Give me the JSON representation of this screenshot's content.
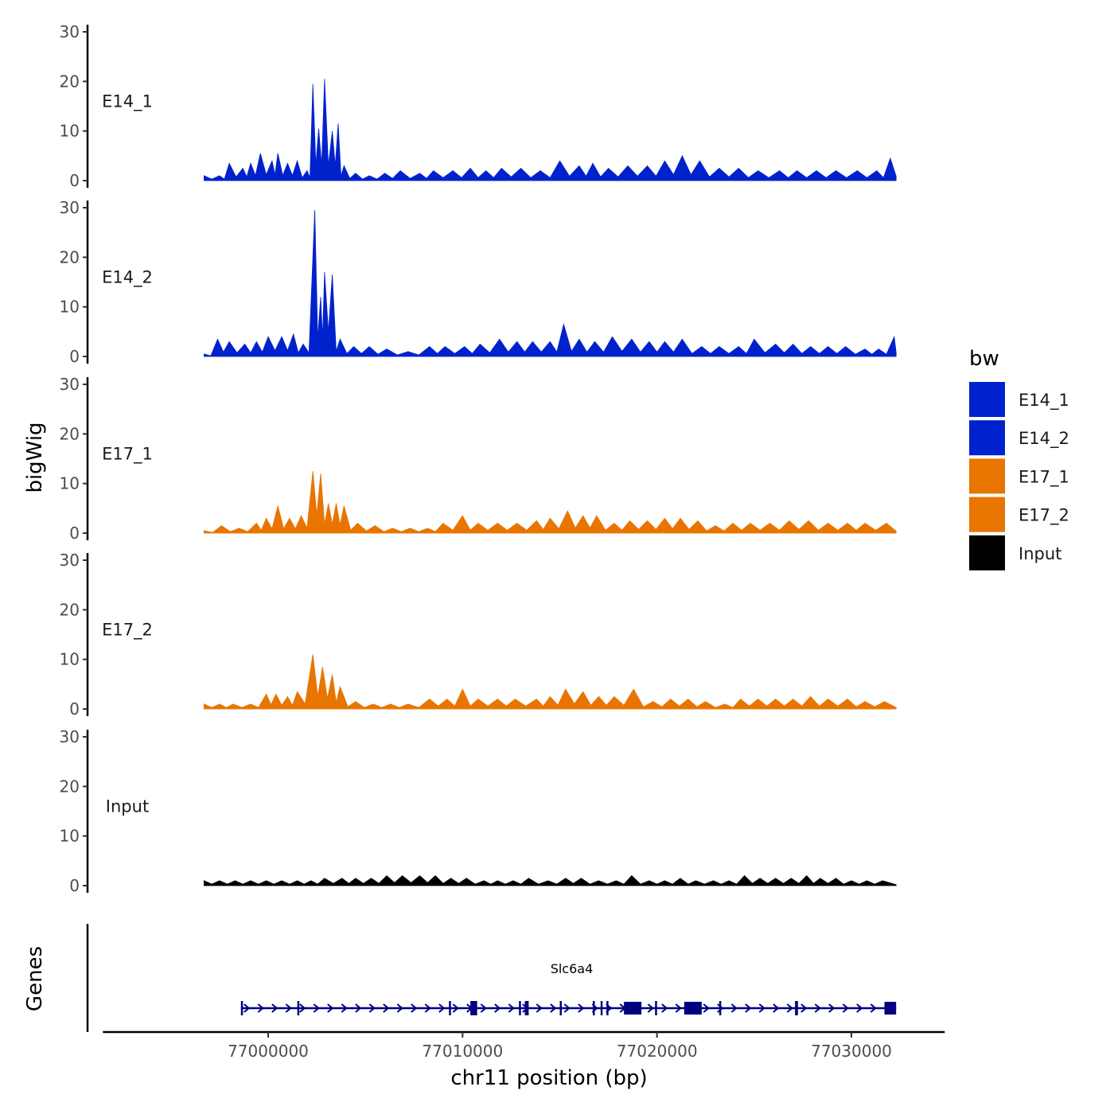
{
  "chart_data": {
    "type": "area",
    "chromosome": "chr11",
    "x_range": [
      76996700,
      77032300
    ],
    "x_axis": {
      "label": "chr11 position (bp)",
      "ticks": [
        77000000,
        77010000,
        77020000,
        77030000
      ],
      "tick_labels": [
        "77000000",
        "77010000",
        "77020000",
        "77030000"
      ],
      "limits": [
        76991500,
        77034800
      ]
    },
    "y_axis": {
      "label": "bigWig",
      "ticks": [
        0,
        10,
        20,
        30
      ],
      "tick_labels": [
        "0",
        "10",
        "20",
        "30"
      ],
      "ylim": [
        0,
        30
      ]
    },
    "genes_axis_label": "Genes",
    "tracks": [
      {
        "name": "E14_1",
        "color": "#0022CC",
        "peaks": [
          [
            76996700,
            1
          ],
          [
            76997500,
            1
          ],
          [
            76998000,
            3.5
          ],
          [
            76998700,
            2.5
          ],
          [
            76999100,
            3.5
          ],
          [
            76999600,
            5.5
          ],
          [
            77000200,
            4
          ],
          [
            77000500,
            5.5
          ],
          [
            77001000,
            3.5
          ],
          [
            77001500,
            4
          ],
          [
            77002000,
            2
          ],
          [
            77002300,
            19.5
          ],
          [
            77002600,
            10.5
          ],
          [
            77002900,
            20.5
          ],
          [
            77003300,
            10
          ],
          [
            77003600,
            11.5
          ],
          [
            77003900,
            3
          ],
          [
            77004500,
            1.5
          ],
          [
            77005200,
            1
          ],
          [
            77006000,
            1.5
          ],
          [
            77006800,
            2
          ],
          [
            77007800,
            1.5
          ],
          [
            77008500,
            2
          ],
          [
            77009500,
            2
          ],
          [
            77010400,
            2.5
          ],
          [
            77011200,
            2
          ],
          [
            77012000,
            2.5
          ],
          [
            77013000,
            2.5
          ],
          [
            77014000,
            2
          ],
          [
            77015000,
            4
          ],
          [
            77016000,
            3
          ],
          [
            77016700,
            3.5
          ],
          [
            77017500,
            2.5
          ],
          [
            77018500,
            3
          ],
          [
            77019500,
            3
          ],
          [
            77020400,
            4
          ],
          [
            77021300,
            5
          ],
          [
            77022200,
            4
          ],
          [
            77023200,
            2.5
          ],
          [
            77024200,
            2.5
          ],
          [
            77025200,
            2
          ],
          [
            77026300,
            2
          ],
          [
            77027200,
            2
          ],
          [
            77028200,
            2
          ],
          [
            77029200,
            2
          ],
          [
            77030300,
            2
          ],
          [
            77031300,
            2
          ],
          [
            77032000,
            4.5
          ]
        ]
      },
      {
        "name": "E14_2",
        "color": "#0022CC",
        "peaks": [
          [
            76996700,
            0.5
          ],
          [
            76997400,
            3.5
          ],
          [
            76998000,
            3
          ],
          [
            76998800,
            2.5
          ],
          [
            76999400,
            3
          ],
          [
            77000000,
            4
          ],
          [
            77000700,
            4
          ],
          [
            77001300,
            4.5
          ],
          [
            77001800,
            2.5
          ],
          [
            77002400,
            29.5
          ],
          [
            77002700,
            12
          ],
          [
            77002900,
            17
          ],
          [
            77003300,
            16.5
          ],
          [
            77003700,
            3.5
          ],
          [
            77004400,
            2
          ],
          [
            77005200,
            2
          ],
          [
            77006100,
            1.5
          ],
          [
            77007200,
            1
          ],
          [
            77008300,
            2
          ],
          [
            77009100,
            2
          ],
          [
            77010100,
            2
          ],
          [
            77010900,
            2.5
          ],
          [
            77011900,
            3.5
          ],
          [
            77012800,
            3
          ],
          [
            77013600,
            3
          ],
          [
            77014500,
            3
          ],
          [
            77015200,
            6.5
          ],
          [
            77016000,
            3.5
          ],
          [
            77016800,
            3
          ],
          [
            77017700,
            4
          ],
          [
            77018700,
            3.5
          ],
          [
            77019600,
            3
          ],
          [
            77020400,
            3
          ],
          [
            77021300,
            3.5
          ],
          [
            77022300,
            2
          ],
          [
            77023200,
            2
          ],
          [
            77024200,
            2
          ],
          [
            77025000,
            3.5
          ],
          [
            77026100,
            2.5
          ],
          [
            77027000,
            2.5
          ],
          [
            77027900,
            2
          ],
          [
            77028800,
            2
          ],
          [
            77029700,
            2
          ],
          [
            77030700,
            1.5
          ],
          [
            77031400,
            1.5
          ],
          [
            77032200,
            4
          ]
        ]
      },
      {
        "name": "E17_1",
        "color": "#E87500",
        "peaks": [
          [
            76996700,
            0.5
          ],
          [
            76997600,
            1.5
          ],
          [
            76998500,
            1
          ],
          [
            76999400,
            2
          ],
          [
            76999900,
            3
          ],
          [
            77000500,
            5.5
          ],
          [
            77001100,
            3
          ],
          [
            77001700,
            3.5
          ],
          [
            77002300,
            12.5
          ],
          [
            77002700,
            12
          ],
          [
            77003100,
            6
          ],
          [
            77003500,
            6
          ],
          [
            77003900,
            5.5
          ],
          [
            77004600,
            2
          ],
          [
            77005500,
            1.5
          ],
          [
            77006400,
            1
          ],
          [
            77007300,
            1
          ],
          [
            77008200,
            1
          ],
          [
            77009000,
            2
          ],
          [
            77010000,
            3.5
          ],
          [
            77010800,
            2
          ],
          [
            77011800,
            2
          ],
          [
            77012800,
            2
          ],
          [
            77013800,
            2.5
          ],
          [
            77014500,
            3
          ],
          [
            77015400,
            4.5
          ],
          [
            77016200,
            3.5
          ],
          [
            77016900,
            3.5
          ],
          [
            77017800,
            2
          ],
          [
            77018600,
            2.5
          ],
          [
            77019500,
            2.5
          ],
          [
            77020400,
            3
          ],
          [
            77021200,
            3
          ],
          [
            77022100,
            2.5
          ],
          [
            77023000,
            1.5
          ],
          [
            77023900,
            2
          ],
          [
            77024800,
            2
          ],
          [
            77025800,
            2
          ],
          [
            77026800,
            2.5
          ],
          [
            77027800,
            2.5
          ],
          [
            77028800,
            2
          ],
          [
            77029800,
            2
          ],
          [
            77030700,
            2
          ],
          [
            77031800,
            2
          ]
        ]
      },
      {
        "name": "E17_2",
        "color": "#E87500",
        "peaks": [
          [
            76996700,
            1
          ],
          [
            76997500,
            1
          ],
          [
            76998200,
            1
          ],
          [
            76999100,
            1
          ],
          [
            76999900,
            3
          ],
          [
            77000400,
            3
          ],
          [
            77001000,
            2.5
          ],
          [
            77001500,
            3.5
          ],
          [
            77002300,
            11
          ],
          [
            77002800,
            8.5
          ],
          [
            77003300,
            7
          ],
          [
            77003700,
            4.5
          ],
          [
            77004500,
            1.5
          ],
          [
            77005400,
            1
          ],
          [
            77006300,
            1
          ],
          [
            77007200,
            1
          ],
          [
            77008300,
            2
          ],
          [
            77009200,
            2
          ],
          [
            77010000,
            4
          ],
          [
            77010800,
            2
          ],
          [
            77011800,
            2
          ],
          [
            77012700,
            2
          ],
          [
            77013800,
            2
          ],
          [
            77014500,
            2.5
          ],
          [
            77015300,
            4
          ],
          [
            77016200,
            3.5
          ],
          [
            77017000,
            2.5
          ],
          [
            77017800,
            2.5
          ],
          [
            77018800,
            4
          ],
          [
            77019800,
            1.5
          ],
          [
            77020700,
            2
          ],
          [
            77021600,
            2
          ],
          [
            77022500,
            1.5
          ],
          [
            77023500,
            1
          ],
          [
            77024300,
            2
          ],
          [
            77025200,
            2
          ],
          [
            77026100,
            2
          ],
          [
            77027000,
            2
          ],
          [
            77027900,
            2.5
          ],
          [
            77028800,
            2
          ],
          [
            77029800,
            2
          ],
          [
            77030700,
            1.5
          ],
          [
            77031700,
            1.5
          ]
        ]
      },
      {
        "name": "Input",
        "color": "#000000",
        "peaks": [
          [
            76996700,
            1
          ],
          [
            76997500,
            1
          ],
          [
            76998300,
            1
          ],
          [
            76999100,
            1
          ],
          [
            76999900,
            1
          ],
          [
            77000700,
            1
          ],
          [
            77001500,
            1
          ],
          [
            77002200,
            1
          ],
          [
            77002900,
            1.5
          ],
          [
            77003800,
            1.5
          ],
          [
            77004500,
            1.5
          ],
          [
            77005300,
            1.5
          ],
          [
            77006100,
            2
          ],
          [
            77006900,
            2
          ],
          [
            77007800,
            2
          ],
          [
            77008600,
            2
          ],
          [
            77009400,
            1.5
          ],
          [
            77010200,
            1.5
          ],
          [
            77011100,
            1
          ],
          [
            77011800,
            1
          ],
          [
            77012600,
            1
          ],
          [
            77013400,
            1.5
          ],
          [
            77014400,
            1
          ],
          [
            77015300,
            1.5
          ],
          [
            77016100,
            1.5
          ],
          [
            77017000,
            1
          ],
          [
            77017900,
            1
          ],
          [
            77018700,
            2
          ],
          [
            77019600,
            1
          ],
          [
            77020400,
            1
          ],
          [
            77021200,
            1.5
          ],
          [
            77022000,
            1
          ],
          [
            77022900,
            1
          ],
          [
            77023700,
            1
          ],
          [
            77024500,
            2
          ],
          [
            77025300,
            1.5
          ],
          [
            77026100,
            1.5
          ],
          [
            77026900,
            1.5
          ],
          [
            77027700,
            2
          ],
          [
            77028400,
            1.5
          ],
          [
            77029200,
            1.5
          ],
          [
            77030000,
            1
          ],
          [
            77030800,
            1
          ],
          [
            77031600,
            1
          ]
        ]
      }
    ],
    "genes": [
      {
        "name": "Slc6a4",
        "start": 76998600,
        "end": 77032300,
        "strand": "+",
        "color": "#000080",
        "exons": [
          [
            76998600,
            76998700
          ],
          [
            77001500,
            77001550
          ],
          [
            77009300,
            77009350
          ],
          [
            77010400,
            77010750
          ],
          [
            77012900,
            77013000
          ],
          [
            77013200,
            77013400
          ],
          [
            77015000,
            77015100
          ],
          [
            77016700,
            77016800
          ],
          [
            77017100,
            77017200
          ],
          [
            77017400,
            77017500
          ],
          [
            77018300,
            77019200
          ],
          [
            77019900,
            77020000
          ],
          [
            77021400,
            77022300
          ],
          [
            77023200,
            77023300
          ],
          [
            77027100,
            77027250
          ],
          [
            77031700,
            77032300
          ]
        ]
      }
    ],
    "legend": {
      "title": "bw",
      "position": "right",
      "entries": [
        {
          "label": "E14_1",
          "color": "#0022CC"
        },
        {
          "label": "E14_2",
          "color": "#0022CC"
        },
        {
          "label": "E17_1",
          "color": "#E87500"
        },
        {
          "label": "E17_2",
          "color": "#E87500"
        },
        {
          "label": "Input",
          "color": "#000000"
        }
      ]
    }
  }
}
